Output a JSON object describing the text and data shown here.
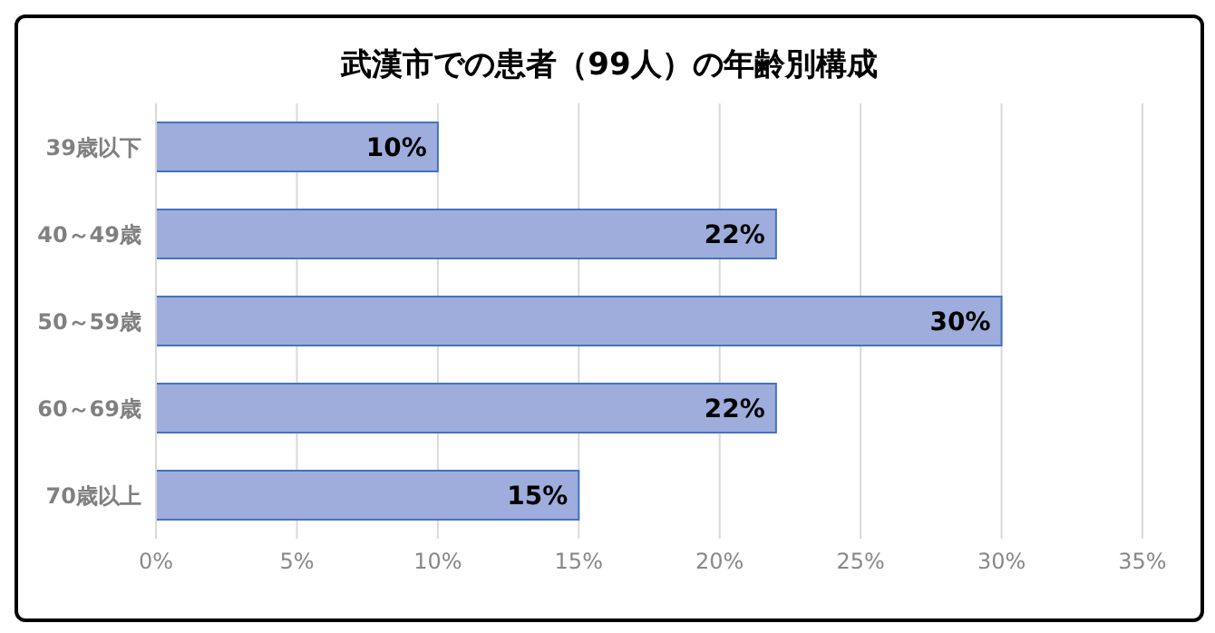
{
  "chart_data": {
    "type": "bar",
    "orientation": "horizontal",
    "title": "武漢市での患者（99人）の年齢別構成",
    "categories": [
      "39歳以下",
      "40～49歳",
      "50～59歳",
      "60～69歳",
      "70歳以上"
    ],
    "values": [
      10,
      22,
      30,
      22,
      15
    ],
    "value_labels": [
      "10%",
      "22%",
      "30%",
      "22%",
      "15%"
    ],
    "color": "#9eaddb",
    "xlim": [
      0,
      35
    ],
    "xticks": [
      {
        "value": 0,
        "label": "0%"
      },
      {
        "value": 5,
        "label": "5%"
      },
      {
        "value": 10,
        "label": "10%"
      },
      {
        "value": 15,
        "label": "15%"
      },
      {
        "value": 20,
        "label": "20%"
      },
      {
        "value": 25,
        "label": "25%"
      },
      {
        "value": 30,
        "label": "30%"
      },
      {
        "value": 35,
        "label": "35%"
      }
    ],
    "grid": "x"
  }
}
